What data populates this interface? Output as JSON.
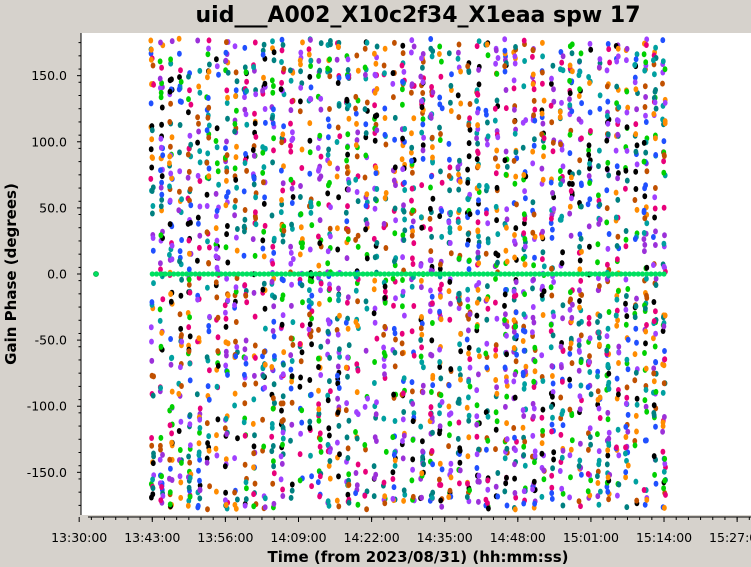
{
  "chart_data": {
    "type": "scatter",
    "title": "uid___A002_X10c2f34_X1eaa spw 17",
    "xlabel": "Time (from 2023/08/31) (hh:mm:ss)",
    "ylabel": "Gain Phase (degrees)",
    "xlim": [
      "13:22:30",
      "15:30:00"
    ],
    "ylim": [
      -180,
      180
    ],
    "x_ticks": [
      "13:30:00",
      "13:43:00",
      "13:56:00",
      "14:09:00",
      "14:22:00",
      "14:35:00",
      "14:48:00",
      "15:01:00",
      "15:14:00",
      "15:27:00"
    ],
    "y_ticks": [
      150.0,
      100.0,
      50.0,
      0.0,
      -50.0,
      -100.0,
      -150.0
    ],
    "y_tick_labels": [
      "150.0",
      "100.0",
      "50.0",
      "0.0",
      "-50.0",
      "-100.0",
      "-150.0"
    ],
    "grid": false,
    "reference_antenna_phase": 0.0,
    "reference_antenna_time_range": [
      "13:43:00",
      "15:14:00"
    ],
    "outlier_point": {
      "time": "13:33:00",
      "phase": 0.0
    },
    "colors": [
      "#e8007a",
      "#9b30d9",
      "#00a0a0",
      "#000000",
      "#ff8c00",
      "#00d000",
      "#2050ff",
      "#c05000",
      "#008080",
      "#a040ff"
    ],
    "reference_color": "#00e060",
    "background": "#ffffff"
  }
}
